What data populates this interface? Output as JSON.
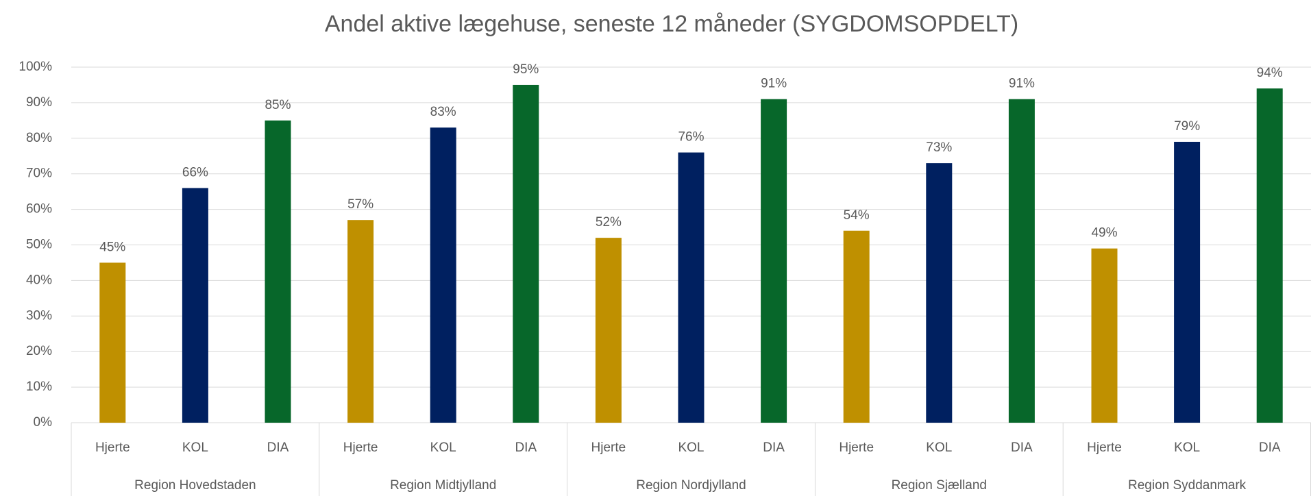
{
  "chart_data": {
    "type": "bar",
    "title": "Andel aktive lægehuse, seneste 12 måneder (SYGDOMSOPDELT)",
    "categories": [
      "Region Hovedstaden",
      "Region Midtjylland",
      "Region Nordjylland",
      "Region Sjælland",
      "Region Syddanmark"
    ],
    "series": [
      {
        "name": "Hjerte",
        "color": "#bf9000",
        "values": [
          45,
          57,
          52,
          54,
          49
        ],
        "value_labels": [
          "45%",
          "57%",
          "52%",
          "54%",
          "49%"
        ]
      },
      {
        "name": "KOL",
        "color": "#002060",
        "values": [
          66,
          83,
          76,
          73,
          79
        ],
        "value_labels": [
          "66%",
          "83%",
          "76%",
          "73%",
          "79%"
        ]
      },
      {
        "name": "DIA",
        "color": "#07672a",
        "values": [
          85,
          95,
          91,
          91,
          94
        ],
        "value_labels": [
          "85%",
          "95%",
          "91%",
          "91%",
          "94%"
        ]
      }
    ],
    "ylim": [
      0,
      100
    ],
    "yticks": [
      {
        "value": 0,
        "label": "0%"
      },
      {
        "value": 10,
        "label": "10%"
      },
      {
        "value": 20,
        "label": "20%"
      },
      {
        "value": 30,
        "label": "30%"
      },
      {
        "value": 40,
        "label": "40%"
      },
      {
        "value": 50,
        "label": "50%"
      },
      {
        "value": 60,
        "label": "60%"
      },
      {
        "value": 70,
        "label": "70%"
      },
      {
        "value": 80,
        "label": "80%"
      },
      {
        "value": 90,
        "label": "90%"
      },
      {
        "value": 100,
        "label": "100%"
      }
    ],
    "grid": true
  }
}
